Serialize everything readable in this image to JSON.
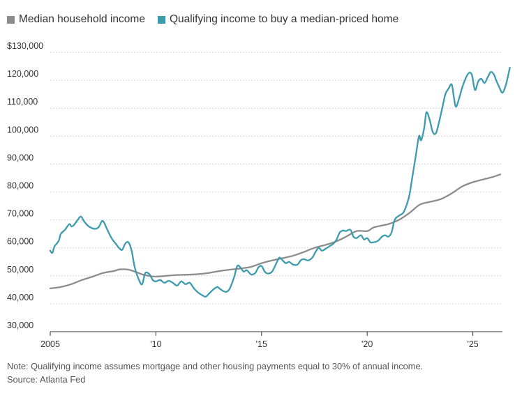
{
  "legend": {
    "median_label": "Median household income",
    "qualifying_label": "Qualifying income to buy a median-priced home"
  },
  "footer": {
    "note": "Note: Qualifying income assumes mortgage and other housing payments equal to 30% of annual income.",
    "source": "Source: Atlanta Fed"
  },
  "colors": {
    "median": "#8c8c8c",
    "qualifying": "#3d9bab",
    "grid": "#d6d6d6",
    "axis": "#333333"
  },
  "chart_data": {
    "type": "line",
    "title": "",
    "xlabel": "",
    "ylabel": "",
    "xlim": [
      2005,
      2026.4
    ],
    "ylim": [
      30000,
      130000
    ],
    "grid": true,
    "legend_position": "top-left",
    "x_ticks": [
      {
        "value": 2005,
        "label": "2005"
      },
      {
        "value": 2010,
        "label": "'10"
      },
      {
        "value": 2015,
        "label": "'15"
      },
      {
        "value": 2020,
        "label": "'20"
      },
      {
        "value": 2025,
        "label": "'25"
      }
    ],
    "y_ticks": [
      {
        "value": 30000,
        "label": "30,000"
      },
      {
        "value": 40000,
        "label": "40,000"
      },
      {
        "value": 50000,
        "label": "50,000"
      },
      {
        "value": 60000,
        "label": "60,000"
      },
      {
        "value": 70000,
        "label": "70,000"
      },
      {
        "value": 80000,
        "label": "80,000"
      },
      {
        "value": 90000,
        "label": "90,000"
      },
      {
        "value": 100000,
        "label": "100,000"
      },
      {
        "value": 110000,
        "label": "110,000"
      },
      {
        "value": 120000,
        "label": "120,000"
      },
      {
        "value": 130000,
        "label": "$130,000"
      }
    ],
    "series": [
      {
        "name": "Median household income",
        "points": [
          [
            2005.0,
            45500
          ],
          [
            2005.5,
            46000
          ],
          [
            2006.0,
            47000
          ],
          [
            2006.5,
            48500
          ],
          [
            2007.0,
            49700
          ],
          [
            2007.5,
            51000
          ],
          [
            2008.0,
            51700
          ],
          [
            2008.3,
            52300
          ],
          [
            2008.7,
            52200
          ],
          [
            2009.0,
            51500
          ],
          [
            2009.5,
            50200
          ],
          [
            2010.0,
            49700
          ],
          [
            2010.5,
            50000
          ],
          [
            2011.0,
            50300
          ],
          [
            2011.5,
            50400
          ],
          [
            2012.0,
            50600
          ],
          [
            2012.5,
            51000
          ],
          [
            2013.0,
            51700
          ],
          [
            2013.5,
            52200
          ],
          [
            2014.0,
            52600
          ],
          [
            2014.5,
            53200
          ],
          [
            2015.0,
            54500
          ],
          [
            2015.5,
            55500
          ],
          [
            2016.0,
            56300
          ],
          [
            2016.5,
            57200
          ],
          [
            2017.0,
            58500
          ],
          [
            2017.5,
            60000
          ],
          [
            2018.0,
            61000
          ],
          [
            2018.5,
            62200
          ],
          [
            2019.0,
            64000
          ],
          [
            2019.5,
            66000
          ],
          [
            2020.0,
            66000
          ],
          [
            2020.3,
            67300
          ],
          [
            2020.7,
            68000
          ],
          [
            2021.0,
            68500
          ],
          [
            2021.5,
            70000
          ],
          [
            2022.0,
            72500
          ],
          [
            2022.5,
            75500
          ],
          [
            2023.0,
            76500
          ],
          [
            2023.5,
            77500
          ],
          [
            2024.0,
            79500
          ],
          [
            2024.5,
            82000
          ],
          [
            2025.0,
            83500
          ],
          [
            2025.5,
            84500
          ],
          [
            2026.0,
            85500
          ],
          [
            2026.3,
            86300
          ]
        ]
      },
      {
        "name": "Qualifying income to buy a median-priced home",
        "points": [
          [
            2005.0,
            59000
          ],
          [
            2005.1,
            58200
          ],
          [
            2005.2,
            60500
          ],
          [
            2005.4,
            62500
          ],
          [
            2005.5,
            65000
          ],
          [
            2005.7,
            66500
          ],
          [
            2005.9,
            68500
          ],
          [
            2006.0,
            67700
          ],
          [
            2006.1,
            68000
          ],
          [
            2006.3,
            70000
          ],
          [
            2006.45,
            71200
          ],
          [
            2006.6,
            69500
          ],
          [
            2006.8,
            67800
          ],
          [
            2007.0,
            67000
          ],
          [
            2007.15,
            66800
          ],
          [
            2007.3,
            67500
          ],
          [
            2007.45,
            69600
          ],
          [
            2007.55,
            69000
          ],
          [
            2007.7,
            66500
          ],
          [
            2007.9,
            63500
          ],
          [
            2008.1,
            61500
          ],
          [
            2008.25,
            60000
          ],
          [
            2008.4,
            59300
          ],
          [
            2008.55,
            61500
          ],
          [
            2008.7,
            62000
          ],
          [
            2008.85,
            59000
          ],
          [
            2009.0,
            53000
          ],
          [
            2009.2,
            48500
          ],
          [
            2009.35,
            47000
          ],
          [
            2009.5,
            51000
          ],
          [
            2009.7,
            50500
          ],
          [
            2009.85,
            48500
          ],
          [
            2010.0,
            48000
          ],
          [
            2010.2,
            48500
          ],
          [
            2010.4,
            47500
          ],
          [
            2010.6,
            48200
          ],
          [
            2010.8,
            47500
          ],
          [
            2011.0,
            46500
          ],
          [
            2011.2,
            48000
          ],
          [
            2011.4,
            47000
          ],
          [
            2011.6,
            47500
          ],
          [
            2011.8,
            45500
          ],
          [
            2012.0,
            44000
          ],
          [
            2012.2,
            43000
          ],
          [
            2012.35,
            42500
          ],
          [
            2012.5,
            43500
          ],
          [
            2012.7,
            45000
          ],
          [
            2012.9,
            46000
          ],
          [
            2013.0,
            45500
          ],
          [
            2013.2,
            44500
          ],
          [
            2013.35,
            44300
          ],
          [
            2013.5,
            45500
          ],
          [
            2013.7,
            49500
          ],
          [
            2013.85,
            53500
          ],
          [
            2014.0,
            53000
          ],
          [
            2014.15,
            51500
          ],
          [
            2014.3,
            52000
          ],
          [
            2014.5,
            50500
          ],
          [
            2014.7,
            51000
          ],
          [
            2014.85,
            53000
          ],
          [
            2015.0,
            53500
          ],
          [
            2015.15,
            51500
          ],
          [
            2015.3,
            50800
          ],
          [
            2015.5,
            51500
          ],
          [
            2015.7,
            54500
          ],
          [
            2015.85,
            56500
          ],
          [
            2016.0,
            55500
          ],
          [
            2016.15,
            54500
          ],
          [
            2016.3,
            55000
          ],
          [
            2016.5,
            54000
          ],
          [
            2016.7,
            54000
          ],
          [
            2016.85,
            55500
          ],
          [
            2017.0,
            56000
          ],
          [
            2017.2,
            55500
          ],
          [
            2017.4,
            56500
          ],
          [
            2017.55,
            58500
          ],
          [
            2017.7,
            60000
          ],
          [
            2017.85,
            59000
          ],
          [
            2018.0,
            59500
          ],
          [
            2018.2,
            60500
          ],
          [
            2018.4,
            61500
          ],
          [
            2018.55,
            63000
          ],
          [
            2018.7,
            65500
          ],
          [
            2018.85,
            66200
          ],
          [
            2019.0,
            66000
          ],
          [
            2019.2,
            66500
          ],
          [
            2019.35,
            64000
          ],
          [
            2019.5,
            63500
          ],
          [
            2019.7,
            64500
          ],
          [
            2019.85,
            63000
          ],
          [
            2020.0,
            63500
          ],
          [
            2020.15,
            62000
          ],
          [
            2020.3,
            62000
          ],
          [
            2020.5,
            62500
          ],
          [
            2020.7,
            64000
          ],
          [
            2020.85,
            64500
          ],
          [
            2021.0,
            64000
          ],
          [
            2021.15,
            65500
          ],
          [
            2021.3,
            70000
          ],
          [
            2021.5,
            71500
          ],
          [
            2021.7,
            72500
          ],
          [
            2021.85,
            75000
          ],
          [
            2022.0,
            79000
          ],
          [
            2022.15,
            86000
          ],
          [
            2022.3,
            93000
          ],
          [
            2022.45,
            100000
          ],
          [
            2022.55,
            98500
          ],
          [
            2022.7,
            103000
          ],
          [
            2022.8,
            108500
          ],
          [
            2022.95,
            106000
          ],
          [
            2023.1,
            101500
          ],
          [
            2023.25,
            101000
          ],
          [
            2023.4,
            105000
          ],
          [
            2023.55,
            110000
          ],
          [
            2023.7,
            115000
          ],
          [
            2023.85,
            117000
          ],
          [
            2024.0,
            118500
          ],
          [
            2024.1,
            114000
          ],
          [
            2024.2,
            110500
          ],
          [
            2024.35,
            113500
          ],
          [
            2024.5,
            117500
          ],
          [
            2024.65,
            120500
          ],
          [
            2024.8,
            122500
          ],
          [
            2024.95,
            122000
          ],
          [
            2025.1,
            116500
          ],
          [
            2025.25,
            119500
          ],
          [
            2025.4,
            120500
          ],
          [
            2025.55,
            119000
          ],
          [
            2025.7,
            121000
          ],
          [
            2025.85,
            123000
          ],
          [
            2026.0,
            122000
          ],
          [
            2026.1,
            120000
          ],
          [
            2026.25,
            117500
          ],
          [
            2026.4,
            115500
          ],
          [
            2026.55,
            118000
          ],
          [
            2026.65,
            121000
          ],
          [
            2026.75,
            124500
          ]
        ]
      }
    ]
  }
}
